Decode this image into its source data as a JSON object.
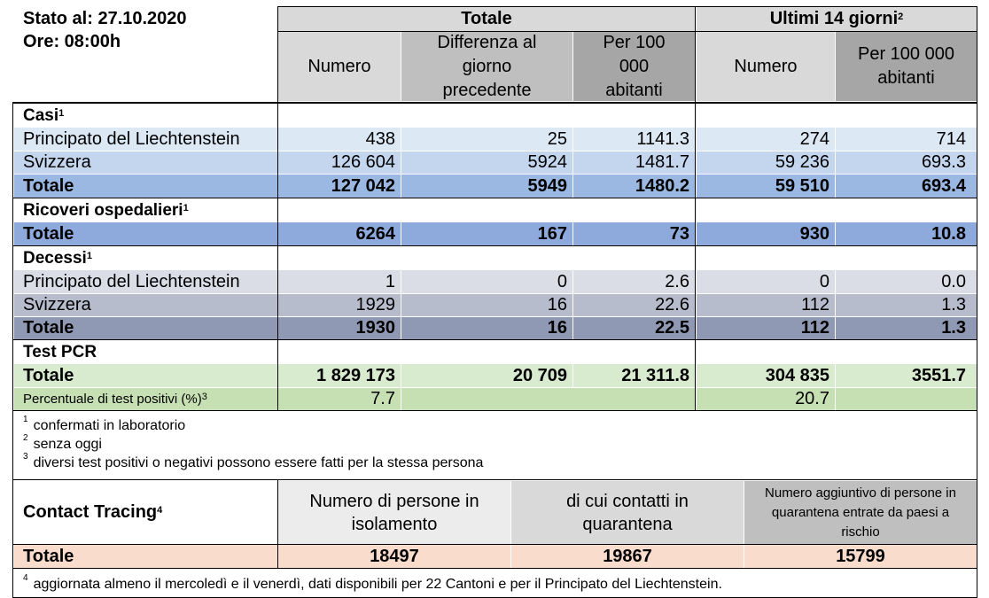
{
  "header": {
    "stato": "Stato al: 27.10.2020",
    "ore": "Ore: 08:00h",
    "totale_group": "Totale",
    "ultimi_group": "Ultimi 14 giorni",
    "ultimi_sup": "2",
    "col_numero": "Numero",
    "col_diff": "Differenza al giorno precedente",
    "col_per100k": "Per 100 000 abitanti",
    "col_numero_14": "Numero",
    "col_per100k_14": "Per 100 000 abitanti"
  },
  "sections": {
    "casi": {
      "title": "Casi",
      "sup": "1",
      "rows": [
        {
          "label": "Principato del Liechtenstein",
          "numero": "438",
          "diff": "25",
          "per100k": "1141.3",
          "numero14": "274",
          "per100k14": "714"
        },
        {
          "label": "Svizzera",
          "numero": "126 604",
          "diff": "5924",
          "per100k": "1481.7",
          "numero14": "59 236",
          "per100k14": "693.3"
        },
        {
          "label": "Totale",
          "numero": "127 042",
          "diff": "5949",
          "per100k": "1480.2",
          "numero14": "59 510",
          "per100k14": "693.4"
        }
      ]
    },
    "ricoveri": {
      "title": "Ricoveri ospedalieri",
      "sup": "1",
      "rows": [
        {
          "label": "Totale",
          "numero": "6264",
          "diff": "167",
          "per100k": "73",
          "numero14": "930",
          "per100k14": "10.8"
        }
      ]
    },
    "decessi": {
      "title": "Decessi",
      "sup": "1",
      "rows": [
        {
          "label": "Principato del Liechtenstein",
          "numero": "1",
          "diff": "0",
          "per100k": "2.6",
          "numero14": "0",
          "per100k14": "0.0"
        },
        {
          "label": "Svizzera",
          "numero": "1929",
          "diff": "16",
          "per100k": "22.6",
          "numero14": "112",
          "per100k14": "1.3"
        },
        {
          "label": "Totale",
          "numero": "1930",
          "diff": "16",
          "per100k": "22.5",
          "numero14": "112",
          "per100k14": "1.3"
        }
      ]
    },
    "test": {
      "title": "Test PCR",
      "rows": [
        {
          "label": "Totale",
          "numero": "1 829 173",
          "diff": "20 709",
          "per100k": "21 311.8",
          "numero14": "304 835",
          "per100k14": "3551.7"
        }
      ],
      "pct_label": "Percentuale di test positivi (%)",
      "pct_sup": "3",
      "pct_value": "7.7",
      "pct_value14": "20.7"
    }
  },
  "footnotes": {
    "f1": "confermati in laboratorio",
    "f2": "senza oggi",
    "f3": "diversi test positivi o negativi possono essere fatti per la stessa persona",
    "f4": "aggiornata almeno il mercoledì e il venerdì, dati disponibili per 22 Cantoni e per il Principato del Liechtenstein."
  },
  "contact_tracing": {
    "title": "Contact Tracing",
    "sup": "4",
    "col1": "Numero di persone in isolamento",
    "col2": "di cui contatti in quarantena",
    "col3": "Numero aggiuntivo di persone in quarantena entrate da paesi a rischio",
    "total_label": "Totale",
    "v1": "18497",
    "v2": "19867",
    "v3": "15799"
  },
  "colors": {
    "header_light": "#d9d9d9",
    "header_dark": "#a6a6a6",
    "casi_light": "#dde8f5",
    "casi_mid": "#c3d6ee",
    "casi_total": "#9ab8e2",
    "ricoveri_total": "#8ea9dc",
    "decessi_light": "#dadde6",
    "decessi_mid": "#b6bccc",
    "decessi_total": "#8f99b3",
    "test_total": "#d8ebcf",
    "test_pct": "#c6e0b4",
    "ct_light": "#ececec",
    "ct_mid": "#d9d9d9",
    "ct_dark": "#bfbfbf",
    "ct_total": "#fadccd"
  }
}
